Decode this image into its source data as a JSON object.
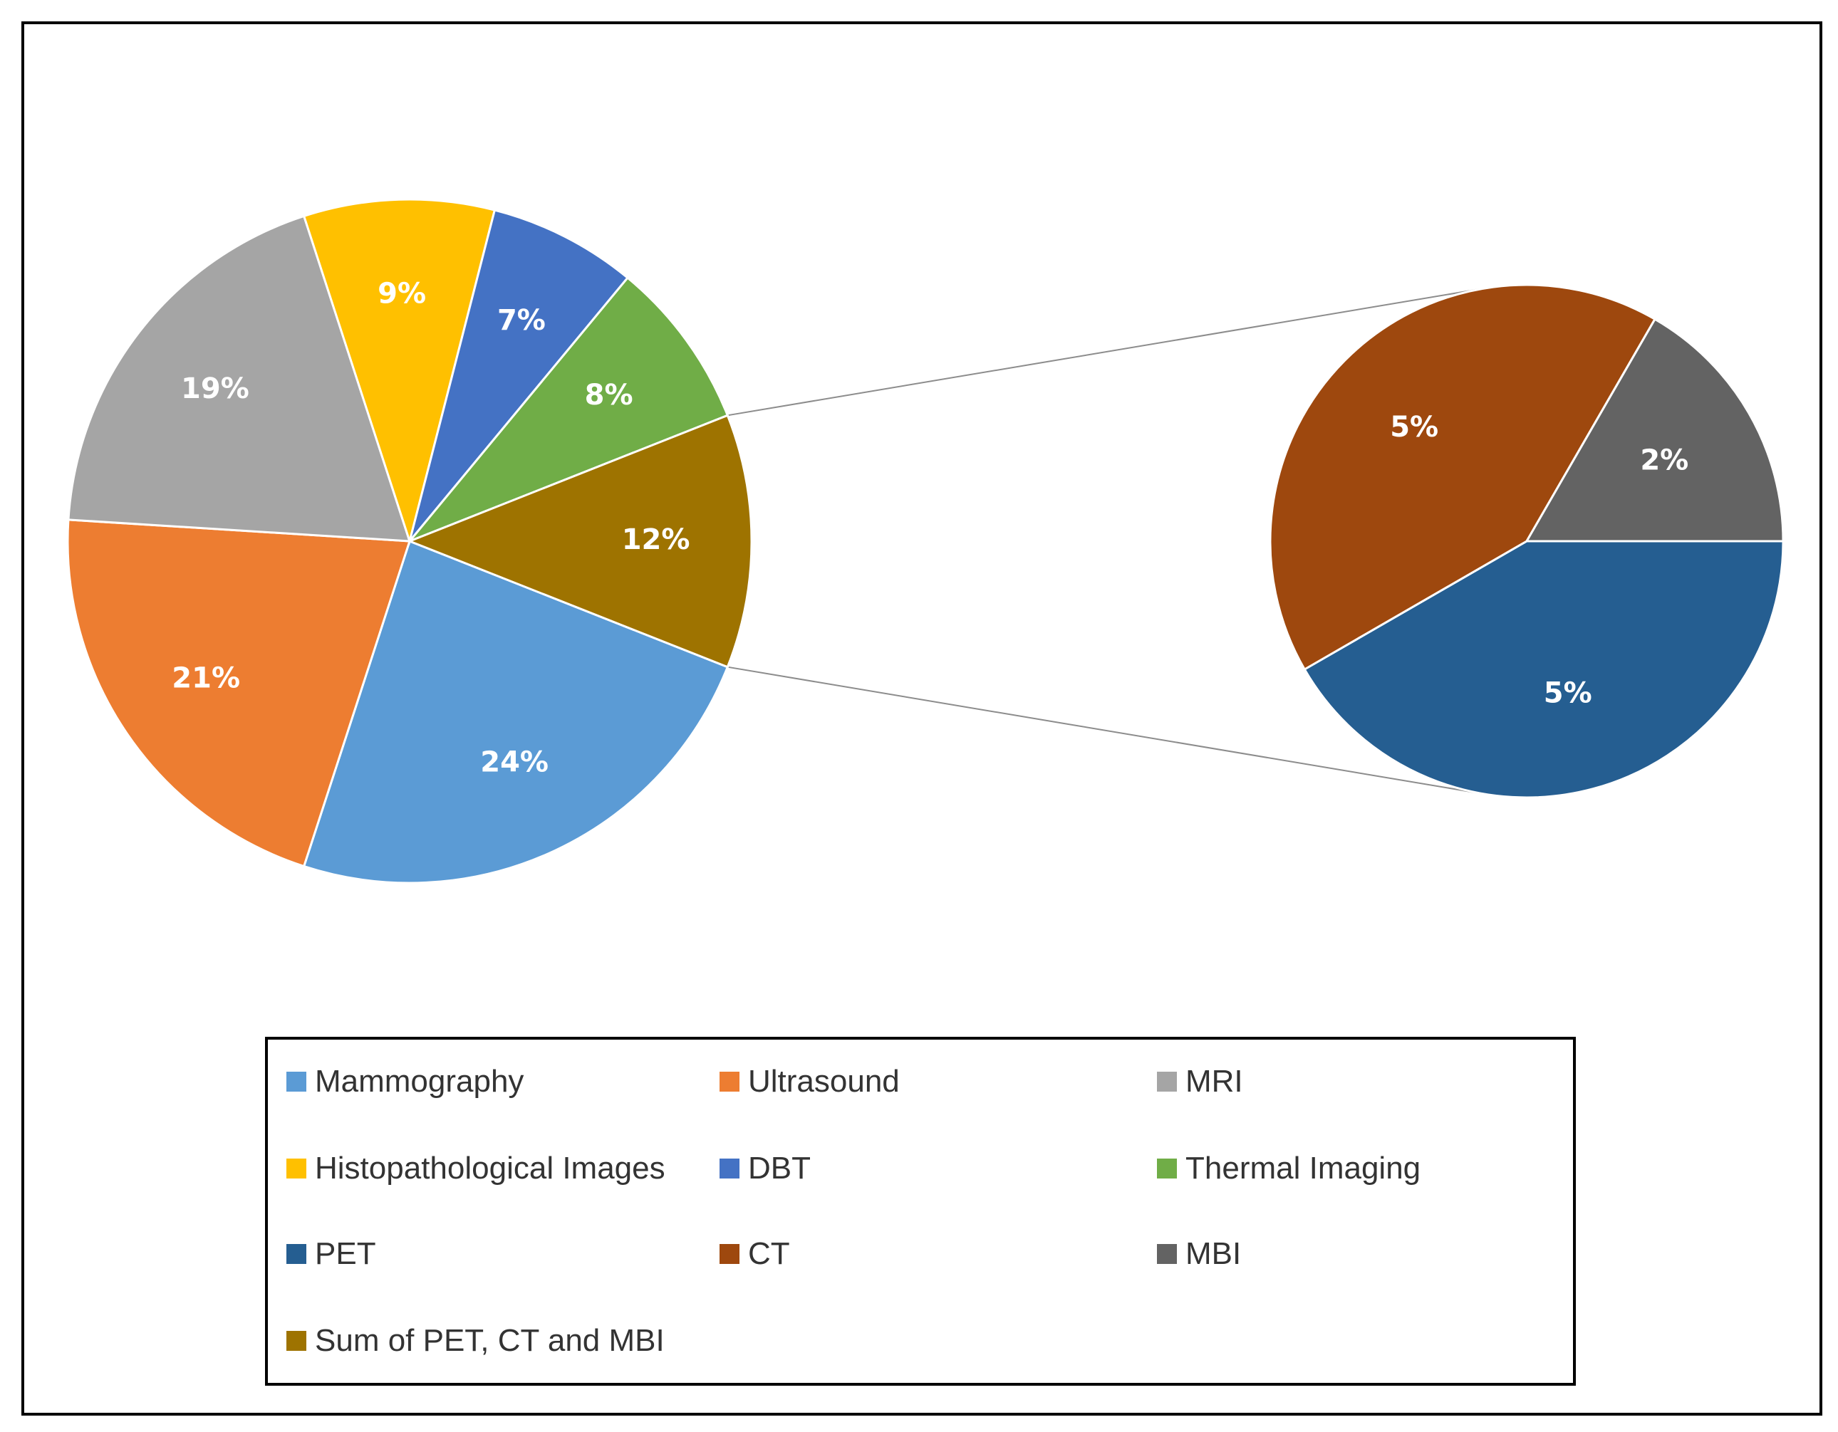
{
  "chart_data": [
    {
      "type": "pie",
      "chart_role": "main",
      "slices": [
        {
          "name": "Mammography",
          "value": 24,
          "label": "24%",
          "color": "#5B9BD5"
        },
        {
          "name": "Ultrasound",
          "value": 21,
          "label": "21%",
          "color": "#ED7D31"
        },
        {
          "name": "MRI",
          "value": 19,
          "label": "19%",
          "color": "#A5A5A5"
        },
        {
          "name": "Histopathological Images",
          "value": 9,
          "label": "9%",
          "color": "#FFC000"
        },
        {
          "name": "DBT",
          "value": 7,
          "label": "7%",
          "color": "#4472C4"
        },
        {
          "name": "Thermal Imaging",
          "value": 8,
          "label": "8%",
          "color": "#70AD47"
        },
        {
          "name": "Sum of PET, CT and MBI",
          "value": 12,
          "label": "12%",
          "color": "#9E7300"
        }
      ]
    },
    {
      "type": "pie",
      "chart_role": "breakdown of Sum of PET, CT and MBI",
      "slices": [
        {
          "name": "PET",
          "value": 5,
          "label": "5%",
          "color": "#255E91"
        },
        {
          "name": "CT",
          "value": 5,
          "label": "5%",
          "color": "#9E480E"
        },
        {
          "name": "MBI",
          "value": 2,
          "label": "2%",
          "color": "#636363"
        }
      ]
    }
  ],
  "legend": {
    "placement": "bottom",
    "items": [
      {
        "label": "Mammography",
        "color": "#5B9BD5"
      },
      {
        "label": "Ultrasound",
        "color": "#ED7D31"
      },
      {
        "label": "MRI",
        "color": "#A5A5A5"
      },
      {
        "label": "Histopathological Images",
        "color": "#FFC000"
      },
      {
        "label": "DBT",
        "color": "#4472C4"
      },
      {
        "label": "Thermal Imaging",
        "color": "#70AD47"
      },
      {
        "label": "PET",
        "color": "#255E91"
      },
      {
        "label": "CT",
        "color": "#9E480E"
      },
      {
        "label": "MBI",
        "color": "#636363"
      },
      {
        "label": "Sum of PET, CT and MBI",
        "color": "#9E7300"
      }
    ]
  }
}
